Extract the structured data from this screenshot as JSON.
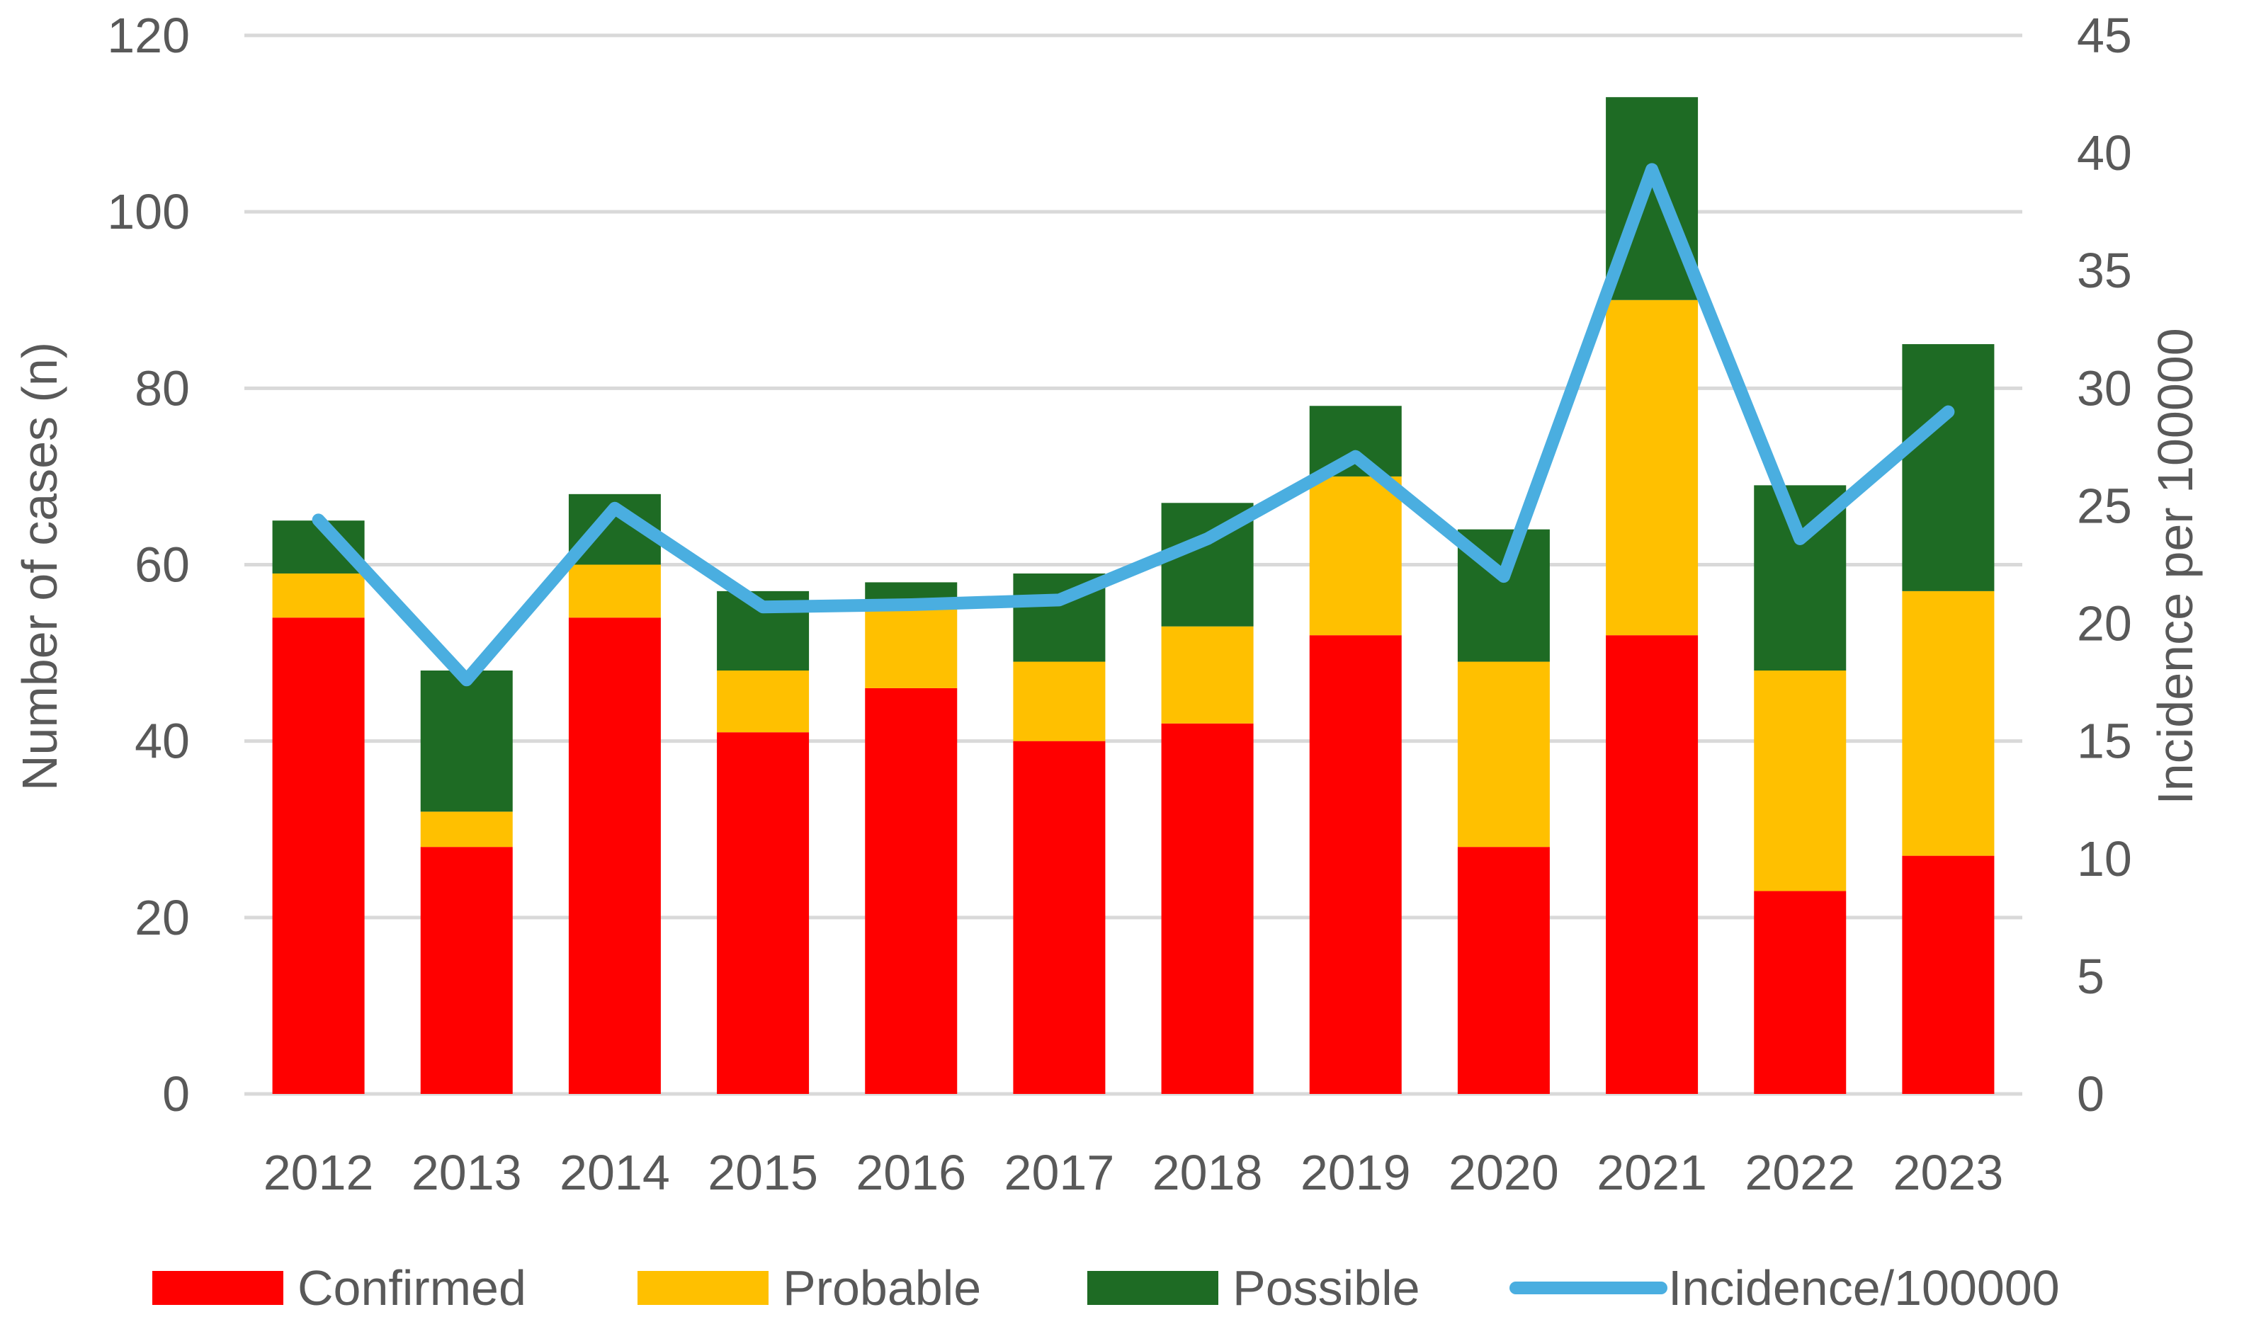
{
  "chart_data": {
    "type": "bar",
    "stacked": true,
    "title": "",
    "xlabel": "",
    "ylabel": "Number of cases (n)",
    "y2label": "Incidence per 100000",
    "ylim": [
      0,
      120
    ],
    "yticks": [
      0,
      20,
      40,
      60,
      80,
      100,
      120
    ],
    "y2lim": [
      0,
      45
    ],
    "y2ticks": [
      0,
      5,
      10,
      15,
      20,
      25,
      30,
      35,
      40,
      45
    ],
    "grid": true,
    "legend_position": "bottom",
    "categories": [
      "2012",
      "2013",
      "2014",
      "2015",
      "2016",
      "2017",
      "2018",
      "2019",
      "2020",
      "2021",
      "2022",
      "2023"
    ],
    "series": [
      {
        "name": "Confirmed",
        "type": "bar",
        "axis": "left",
        "color": "#ff0000",
        "values": [
          54,
          28,
          54,
          41,
          46,
          40,
          42,
          52,
          28,
          52,
          23,
          27
        ]
      },
      {
        "name": "Probable",
        "type": "bar",
        "axis": "left",
        "color": "#ffc000",
        "values": [
          5,
          4,
          6,
          7,
          9,
          9,
          11,
          18,
          21,
          38,
          25,
          30
        ]
      },
      {
        "name": "Possible",
        "type": "bar",
        "axis": "left",
        "color": "#1e6b24",
        "values": [
          6,
          16,
          8,
          9,
          3,
          10,
          14,
          8,
          15,
          23,
          21,
          28
        ]
      },
      {
        "name": "Incidence/100000",
        "type": "line",
        "axis": "right",
        "color": "#4aaee0",
        "values": [
          24.4,
          17.6,
          24.9,
          20.7,
          20.8,
          21.0,
          23.6,
          27.1,
          22.0,
          39.3,
          23.6,
          29.0
        ]
      }
    ]
  }
}
